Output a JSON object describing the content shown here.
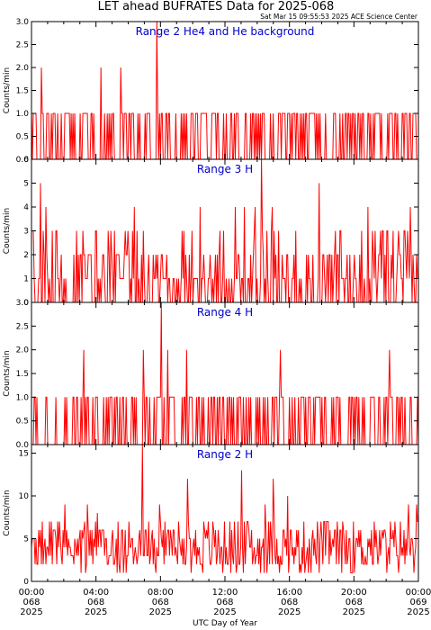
{
  "title": "LET ahead BUFRATES Data for 2025-068",
  "timestamp": "Sat Mar 15 09:55:53 2025 ACE Science Center",
  "xlabel": "UTC Day of Year",
  "colors": {
    "series": "#ff0000",
    "label": "#0000cc",
    "axis": "#000000"
  },
  "chart_data": [
    {
      "type": "line",
      "label": "Range 2 He4 and He background",
      "ylabel": "Counts/min",
      "ylim": [
        0,
        3
      ],
      "yticks": [
        "0.0",
        "0.5",
        "1.0",
        "1.5",
        "2.0",
        "2.5",
        "3.0"
      ],
      "xlim_hours": [
        0,
        24
      ],
      "max": 3,
      "typical_level": 1
    },
    {
      "type": "line",
      "label": "Range 3 H",
      "ylabel": "Counts/min",
      "ylim": [
        0,
        6
      ],
      "yticks": [
        "0",
        "1",
        "2",
        "3",
        "4",
        "5",
        "6"
      ],
      "xlim_hours": [
        0,
        24
      ],
      "max": 6,
      "typical_level": 1
    },
    {
      "type": "line",
      "label": "Range 4 H",
      "ylabel": "Counts/min",
      "ylim": [
        0,
        3
      ],
      "yticks": [
        "0.0",
        "0.5",
        "1.0",
        "1.5",
        "2.0",
        "2.5",
        "3.0"
      ],
      "xlim_hours": [
        0,
        24
      ],
      "max": 3,
      "typical_level": 1
    },
    {
      "type": "line",
      "label": "Range 2 H",
      "ylabel": "Counts/min",
      "ylim": [
        0,
        16
      ],
      "yticks": [
        "0",
        "5",
        "10",
        "15"
      ],
      "xlim_hours": [
        0,
        24
      ],
      "max": 16,
      "typical_level": 4
    }
  ],
  "xticks": [
    {
      "time": "00:00",
      "doy": "068",
      "year": "2025"
    },
    {
      "time": "04:00",
      "doy": "068",
      "year": "2025"
    },
    {
      "time": "08:00",
      "doy": "068",
      "year": "2025"
    },
    {
      "time": "12:00",
      "doy": "068",
      "year": "2025"
    },
    {
      "time": "16:00",
      "doy": "068",
      "year": "2025"
    },
    {
      "time": "20:00",
      "doy": "068",
      "year": "2025"
    },
    {
      "time": "00:00",
      "doy": "069",
      "year": "2025"
    }
  ]
}
